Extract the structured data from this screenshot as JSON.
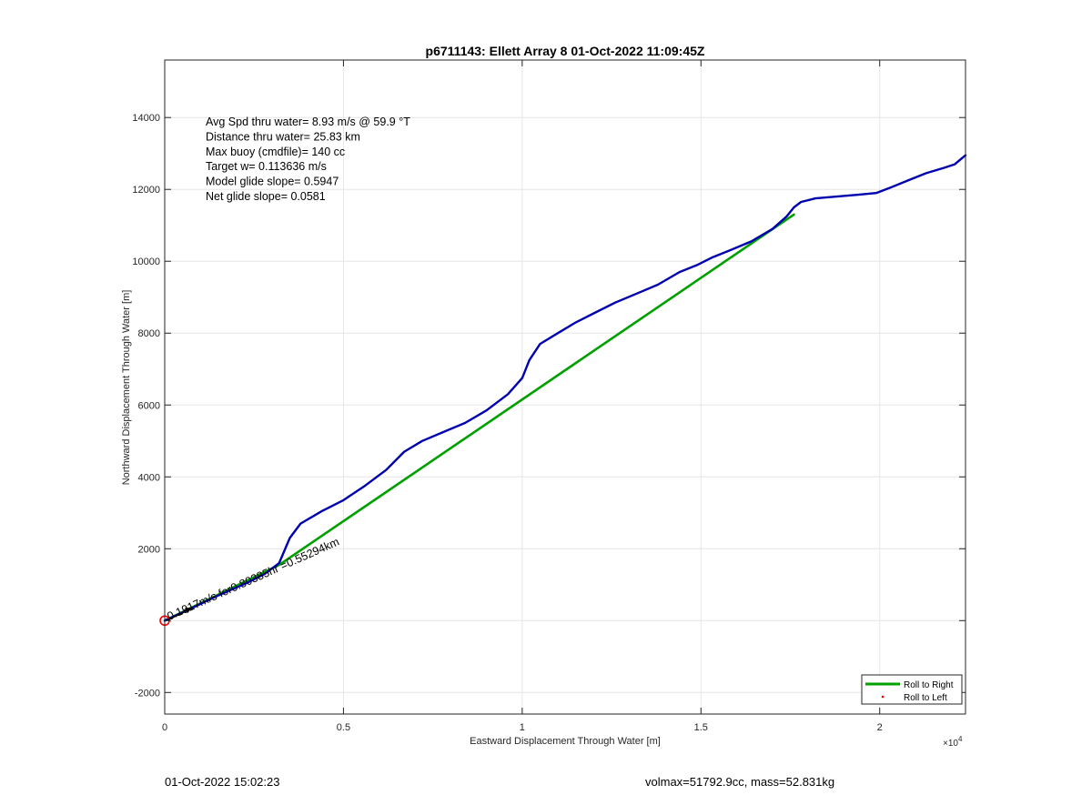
{
  "chart_data": {
    "type": "line",
    "title": "p6711143: Ellett Array 8 01-Oct-2022 11:09:45Z",
    "xlabel": "Eastward Displacement Through Water [m]",
    "ylabel": "Northward Displacement Through Water [m]",
    "x_exponent_label": "×10",
    "x_exponent_power": "4",
    "xlim": [
      0,
      22400
    ],
    "ylim": [
      -2600,
      15600
    ],
    "xticks": [
      0,
      5000,
      10000,
      15000,
      20000
    ],
    "xtick_labels": [
      "0",
      "0.5",
      "1",
      "1.5",
      "2"
    ],
    "yticks": [
      -2000,
      0,
      2000,
      4000,
      6000,
      8000,
      10000,
      12000,
      14000
    ],
    "ytick_labels": [
      "-2000",
      "",
      "2000",
      "4000",
      "6000",
      "8000",
      "10000",
      "12000",
      "14000"
    ],
    "grid": true,
    "legend_position": "bottom-right",
    "annotation_lines": [
      "Avg Spd thru water=  8.93 m/s @  59.9 °T",
      "Distance thru water= 25.83 km",
      "Max buoy (cmdfile)= 140 cc",
      "Target w= 0.113636 m/s",
      "Model glide slope= 0.5947",
      "Net glide slope= 0.0581"
    ],
    "arrow_label": "0.1917m/s for0.80385hr =0.55294km",
    "series": [
      {
        "name": "Roll to Right",
        "color": "#00a000",
        "style": "line",
        "x": [
          0,
          3200,
          17600
        ],
        "y": [
          0,
          1550,
          11300
        ]
      },
      {
        "name": "Roll to Left",
        "color": "#ff0000",
        "style": "marker",
        "x": [
          0
        ],
        "y": [
          0
        ]
      },
      {
        "name": "",
        "color": "#0000b0",
        "style": "line",
        "x": [
          0,
          700,
          1500,
          2300,
          2800,
          3200,
          3500,
          3800,
          4400,
          5000,
          5600,
          6200,
          6700,
          7200,
          7800,
          8400,
          9000,
          9600,
          10000,
          10200,
          10500,
          11000,
          11500,
          12000,
          12600,
          13200,
          13800,
          14400,
          14900,
          15300,
          15800,
          16400,
          17000,
          17400,
          17600,
          17800,
          18200,
          18800,
          19400,
          19900,
          20300,
          20800,
          21300,
          21800,
          22100,
          22400
        ],
        "y": [
          0,
          320,
          700,
          1050,
          1300,
          1600,
          2300,
          2700,
          3050,
          3350,
          3750,
          4200,
          4700,
          5000,
          5250,
          5500,
          5850,
          6300,
          6750,
          7250,
          7700,
          8000,
          8300,
          8550,
          8850,
          9100,
          9350,
          9700,
          9900,
          10100,
          10300,
          10550,
          10900,
          11250,
          11500,
          11650,
          11750,
          11800,
          11850,
          11900,
          12050,
          12250,
          12450,
          12600,
          12700,
          12950
        ]
      }
    ]
  },
  "footer": {
    "timestamp": "01-Oct-2022 15:02:23",
    "summary": "volmax=51792.9cc, mass=52.831kg"
  }
}
